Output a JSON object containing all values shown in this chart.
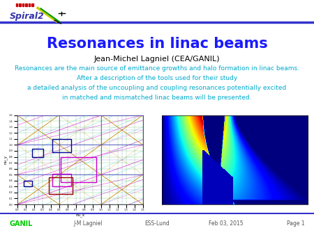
{
  "title": "Resonances in linac beams",
  "subtitle": "Jean-Michel Lagniel (CEA/GANIL)",
  "body_text": "Resonances are the main source of emittance growths and halo formation in linac beams.\nAfter a description of the tools used for their study\na detailed analysis of the uncoupling and coupling resonances potentially excited\nin matched and mismatched linac beams will be presented.",
  "footer_left": "GANIL",
  "footer_center_left": "J-M Lagniel",
  "footer_center": "ESS-Lund",
  "footer_center_right": "Feb 03, 2015",
  "footer_right": "Page 1",
  "title_color": "#1a1aff",
  "subtitle_color": "#000000",
  "body_color": "#00aacc",
  "footer_color": "#555555",
  "ganil_color": "#00cc00",
  "bg_color": "#ffffff",
  "header_line_color": "#3333cc",
  "footer_line_color": "#3333cc"
}
